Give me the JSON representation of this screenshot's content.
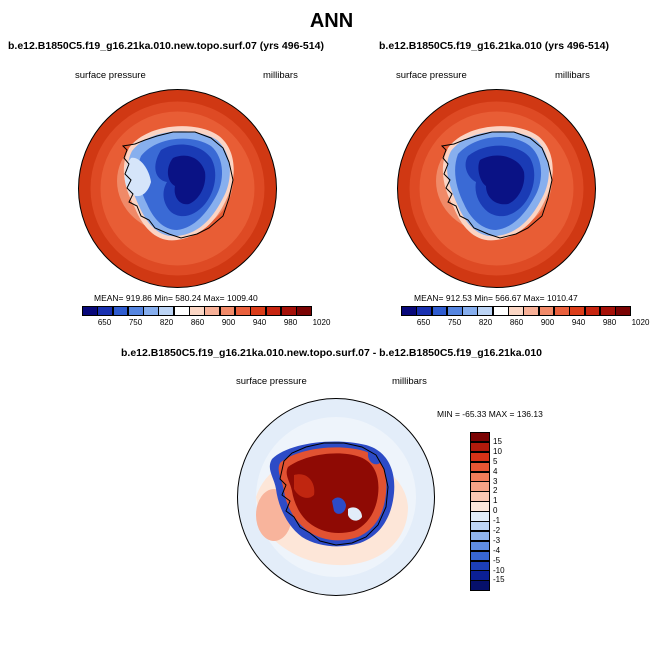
{
  "title": "ANN",
  "panels": [
    {
      "case": "b.e12.B1850C5.f19_g16.21ka.010.new.topo.surf.07 (yrs 496-514)",
      "variable": "surface pressure",
      "units": "millibars",
      "stats": "MEAN= 919.86  Min= 580.24  Max= 1009.40"
    },
    {
      "case": "b.e12.B1850C5.f19_g16.21ka.010 (yrs 496-514)",
      "variable": "surface pressure",
      "units": "millibars",
      "stats": "MEAN= 912.53  Min= 566.67  Max= 1010.47"
    }
  ],
  "diff_panel": {
    "case": "b.e12.B1850C5.f19_g16.21ka.010.new.topo.surf.07 - b.e12.B1850C5.f19_g16.21ka.010",
    "variable": "surface pressure",
    "units": "millibars",
    "stats": "MIN = -65.33  MAX = 136.13"
  },
  "colorbar_abs": {
    "ticks": [
      "650",
      "750",
      "820",
      "860",
      "900",
      "940",
      "980",
      "1020"
    ],
    "colors": [
      "#08087a",
      "#1830b0",
      "#2f5ccf",
      "#5585e0",
      "#86aeee",
      "#bcd4f5",
      "#ffffff",
      "#fbd6c4",
      "#f7b097",
      "#f18a69",
      "#e9603d",
      "#db3d1a",
      "#c72510",
      "#a51008",
      "#7a0303"
    ]
  },
  "colorbar_diff": {
    "ticks": [
      "15",
      "10",
      "5",
      "4",
      "3",
      "2",
      "1",
      "0",
      "-1",
      "-2",
      "-3",
      "-4",
      "-5",
      "-10",
      "-15"
    ],
    "colors": [
      "#7a0303",
      "#b01a0c",
      "#d83217",
      "#ea5533",
      "#f27d5a",
      "#f6a386",
      "#fac7b3",
      "#fde8dc",
      "#e2edf9",
      "#bcd4f5",
      "#8fb4ee",
      "#5f8de3",
      "#3766d3",
      "#1c3fb7",
      "#0b1f95",
      "#06106a"
    ]
  }
}
